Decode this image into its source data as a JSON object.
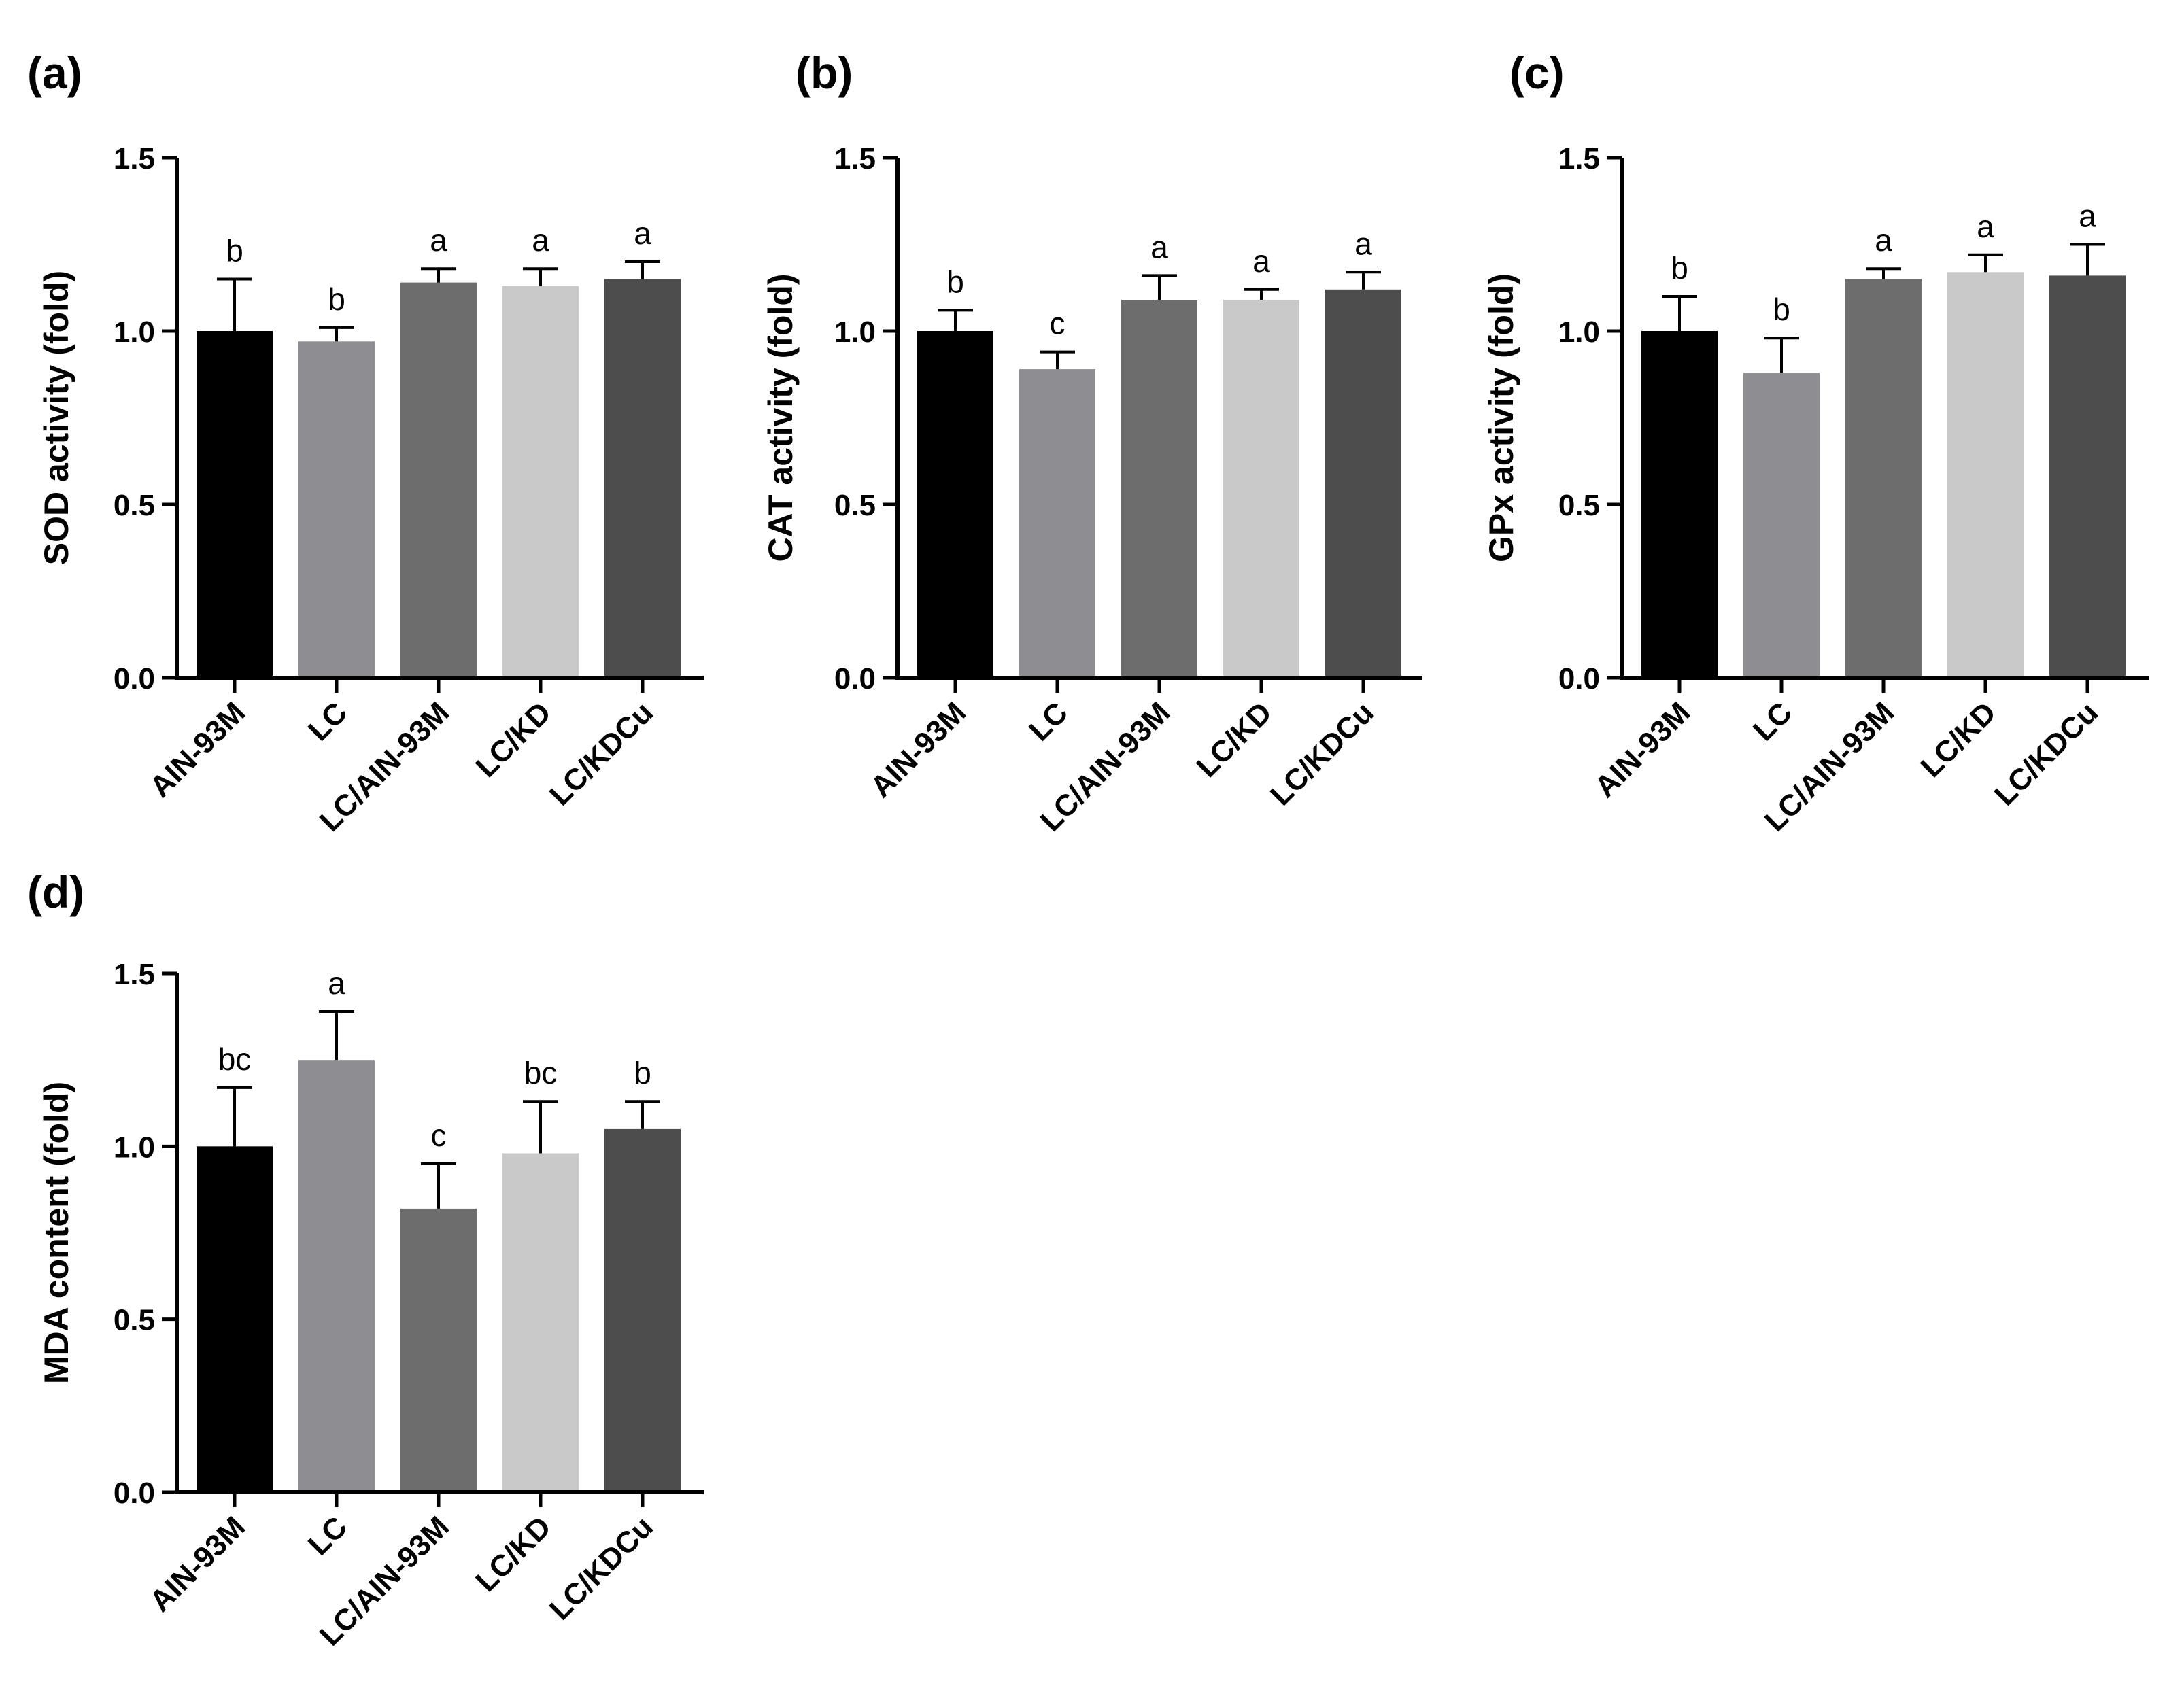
{
  "chart_data": [
    {
      "panel": "(a)",
      "type": "bar",
      "categories": [
        "AIN-93M",
        "LC",
        "LC/AIN-93M",
        "LC/KD",
        "LC/KDCu"
      ],
      "values": [
        1.0,
        0.97,
        1.14,
        1.13,
        1.15
      ],
      "errors": [
        0.15,
        0.04,
        0.04,
        0.05,
        0.05
      ],
      "significance": [
        "b",
        "b",
        "a",
        "a",
        "a"
      ],
      "colors": [
        "#000000",
        "#8e8e92",
        "#6d6d6d",
        "#c9c9c9",
        "#4d4d4d"
      ],
      "ylabel": "SOD activity (fold)",
      "ylim": [
        0.0,
        1.5
      ],
      "yticks": [
        "0.0",
        "0.5",
        "1.0",
        "1.5"
      ]
    },
    {
      "panel": "(b)",
      "type": "bar",
      "categories": [
        "AIN-93M",
        "LC",
        "LC/AIN-93M",
        "LC/KD",
        "LC/KDCu"
      ],
      "values": [
        1.0,
        0.89,
        1.09,
        1.09,
        1.12
      ],
      "errors": [
        0.06,
        0.05,
        0.07,
        0.03,
        0.05
      ],
      "significance": [
        "b",
        "c",
        "a",
        "a",
        "a"
      ],
      "colors": [
        "#000000",
        "#8e8e92",
        "#6d6d6d",
        "#c9c9c9",
        "#4d4d4d"
      ],
      "ylabel": "CAT activity (fold)",
      "ylim": [
        0.0,
        1.5
      ],
      "yticks": [
        "0.0",
        "0.5",
        "1.0",
        "1.5"
      ]
    },
    {
      "panel": "(c)",
      "type": "bar",
      "categories": [
        "AIN-93M",
        "LC",
        "LC/AIN-93M",
        "LC/KD",
        "LC/KDCu"
      ],
      "values": [
        1.0,
        0.88,
        1.15,
        1.17,
        1.16
      ],
      "errors": [
        0.1,
        0.1,
        0.03,
        0.05,
        0.09
      ],
      "significance": [
        "b",
        "b",
        "a",
        "a",
        "a"
      ],
      "colors": [
        "#000000",
        "#8e8e92",
        "#6d6d6d",
        "#c9c9c9",
        "#4d4d4d"
      ],
      "ylabel": "GPx activity (fold)",
      "ylim": [
        0.0,
        1.5
      ],
      "yticks": [
        "0.0",
        "0.5",
        "1.0",
        "1.5"
      ]
    },
    {
      "panel": "(d)",
      "type": "bar",
      "categories": [
        "AIN-93M",
        "LC",
        "LC/AIN-93M",
        "LC/KD",
        "LC/KDCu"
      ],
      "values": [
        1.0,
        1.25,
        0.82,
        0.98,
        1.05
      ],
      "errors": [
        0.17,
        0.14,
        0.13,
        0.15,
        0.08
      ],
      "significance": [
        "bc",
        "a",
        "c",
        "bc",
        "b"
      ],
      "colors": [
        "#000000",
        "#8e8e92",
        "#6d6d6d",
        "#c9c9c9",
        "#4d4d4d"
      ],
      "ylabel": "MDA content (fold)",
      "ylim": [
        0.0,
        1.5
      ],
      "yticks": [
        "0.0",
        "0.5",
        "1.0",
        "1.5"
      ]
    }
  ]
}
